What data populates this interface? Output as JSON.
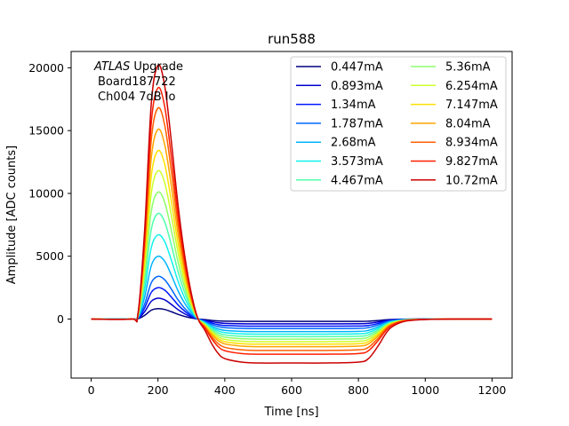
{
  "chart_data": {
    "type": "line",
    "title": "run588",
    "xlabel": "Time [ns]",
    "ylabel": "Amplitude [ADC counts]",
    "xlim": [
      -60,
      1260
    ],
    "ylim": [
      -4700,
      21300
    ],
    "xticks": [
      0,
      200,
      400,
      600,
      800,
      1000,
      1200
    ],
    "yticks": [
      0,
      5000,
      10000,
      15000,
      20000
    ],
    "grid": false,
    "legend_placement": "top-right",
    "legend_columns": 2,
    "annotation": {
      "italic": "ATLAS",
      "rest": " Upgrade",
      "line2": "Board187722",
      "line3": "Ch004 7dB lo"
    },
    "pulse_shape": {
      "x": [
        0,
        120,
        140,
        160,
        180,
        200,
        220,
        240,
        260,
        280,
        300,
        320,
        340,
        360,
        380,
        400,
        450,
        500,
        600,
        700,
        800,
        830,
        860,
        880,
        900,
        940,
        1000,
        1100,
        1200
      ],
      "shape": [
        0,
        0,
        0.02,
        0.35,
        0.85,
        1.0,
        0.92,
        0.7,
        0.45,
        0.25,
        0.1,
        0.0,
        -0.25,
        -0.55,
        -0.78,
        -0.9,
        -0.98,
        -1.0,
        -1.0,
        -1.0,
        -0.98,
        -0.9,
        -0.6,
        -0.35,
        -0.18,
        -0.05,
        -0.01,
        0,
        0
      ]
    },
    "series": [
      {
        "name": "0.447mA",
        "peak": 830,
        "undershoot": 190,
        "color": "#00007f"
      },
      {
        "name": "0.893mA",
        "peak": 1660,
        "undershoot": 380,
        "color": "#0000d0"
      },
      {
        "name": "1.34mA",
        "peak": 2500,
        "undershoot": 570,
        "color": "#0018ff"
      },
      {
        "name": "1.787mA",
        "peak": 3400,
        "undershoot": 760,
        "color": "#0068ff"
      },
      {
        "name": "2.68mA",
        "peak": 5000,
        "undershoot": 1000,
        "color": "#00b4ff"
      },
      {
        "name": "3.573mA",
        "peak": 6700,
        "undershoot": 1200,
        "color": "#10f2ea"
      },
      {
        "name": "4.467mA",
        "peak": 8400,
        "undershoot": 1400,
        "color": "#4fffad"
      },
      {
        "name": "5.36mA",
        "peak": 10100,
        "undershoot": 1600,
        "color": "#8eff6b"
      },
      {
        "name": "6.254mA",
        "peak": 11800,
        "undershoot": 1800,
        "color": "#cdff2a"
      },
      {
        "name": "7.147mA",
        "peak": 13400,
        "undershoot": 2000,
        "color": "#ffe000"
      },
      {
        "name": "8.04mA",
        "peak": 15100,
        "undershoot": 2200,
        "color": "#ffa400"
      },
      {
        "name": "8.934mA",
        "peak": 16800,
        "undershoot": 2500,
        "color": "#ff6000"
      },
      {
        "name": "9.827mA",
        "peak": 18400,
        "undershoot": 2800,
        "color": "#ff1e00"
      },
      {
        "name": "10.72mA",
        "peak": 20200,
        "undershoot": 3500,
        "color": "#cb0000"
      }
    ]
  }
}
